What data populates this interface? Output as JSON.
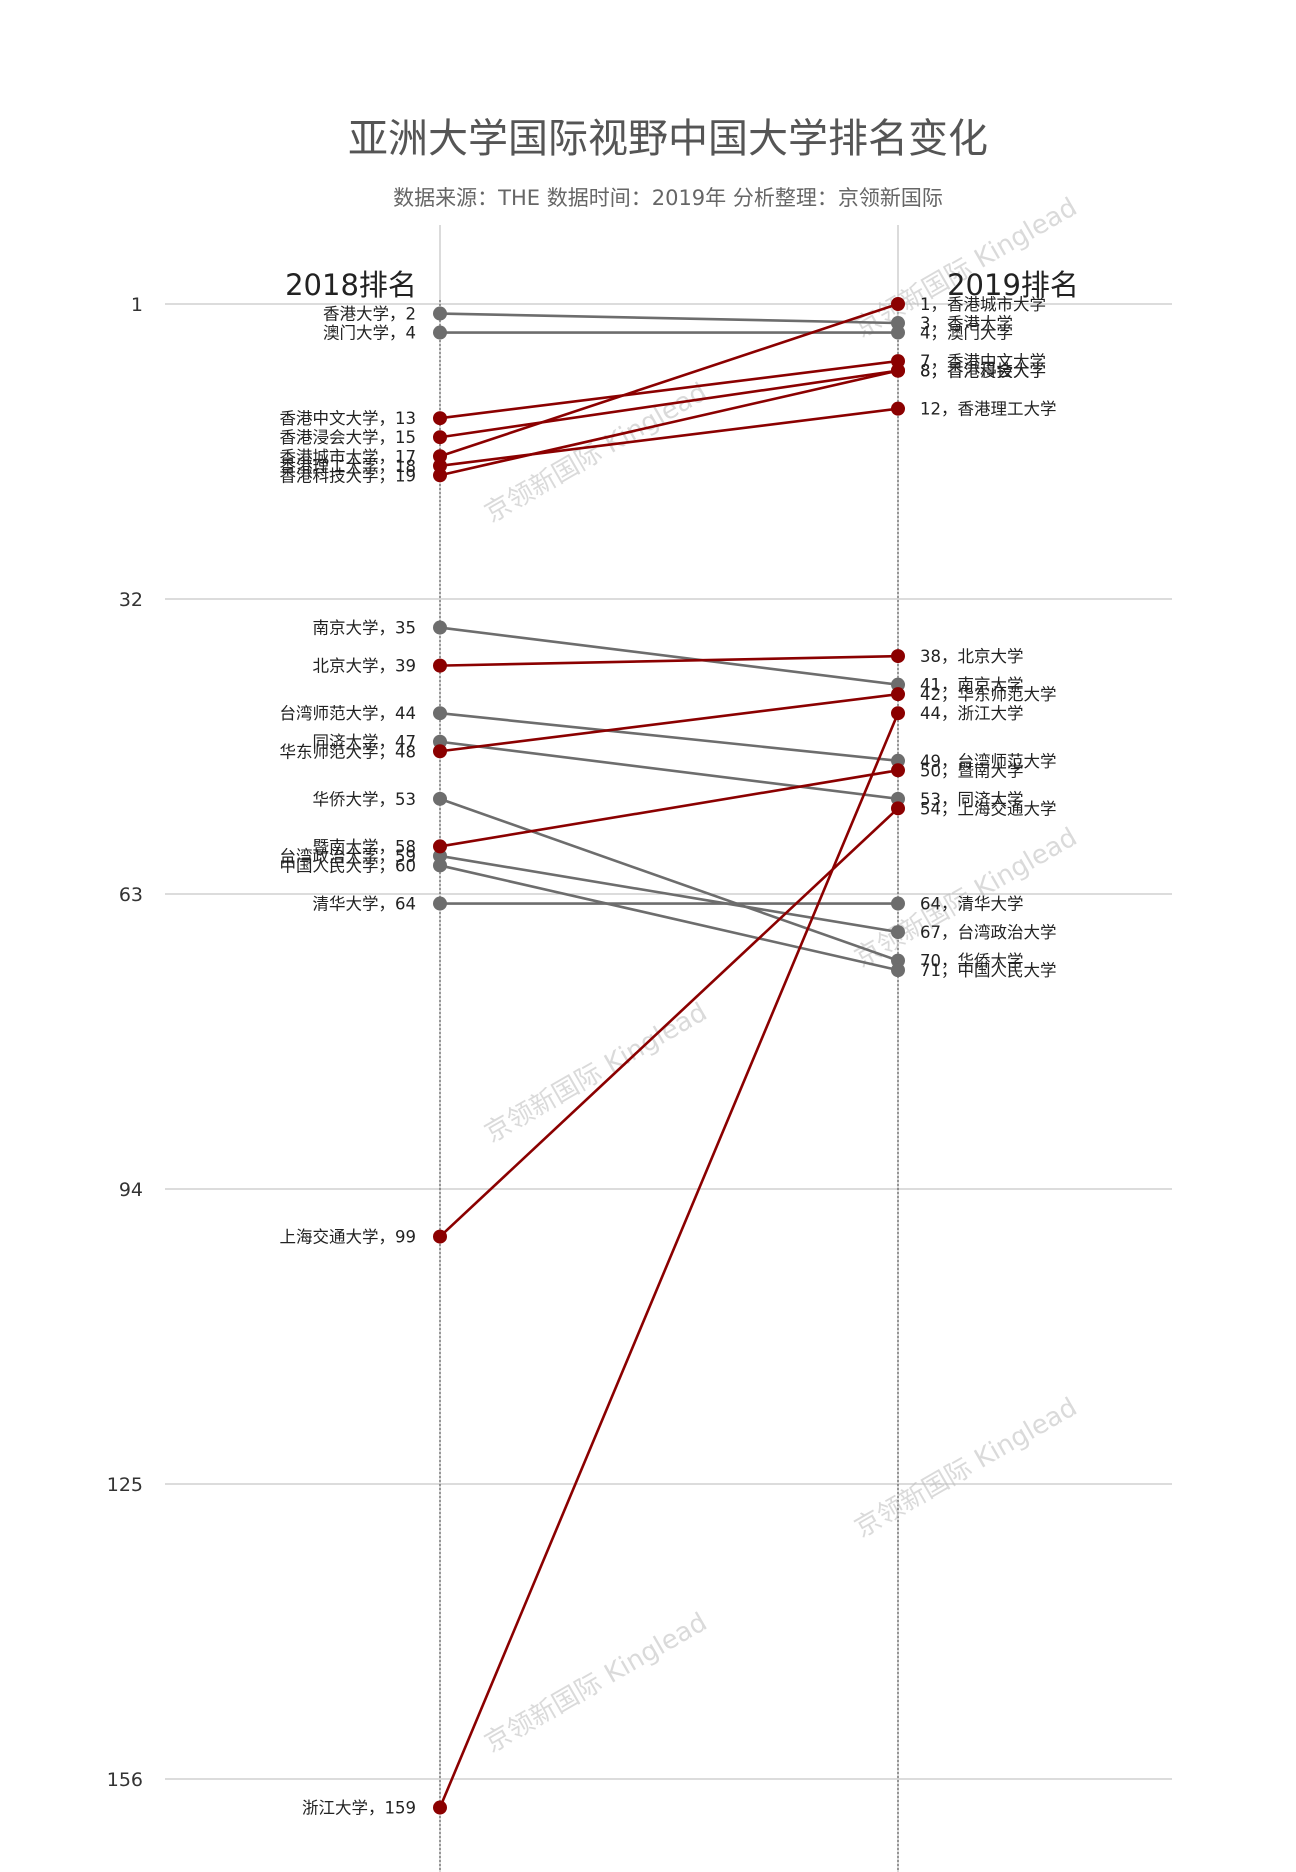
{
  "chart_data": {
    "type": "line",
    "subtype": "slope",
    "title": "亚洲大学国际视野中国大学排名变化",
    "subtitle": "数据来源：THE 数据时间：2019年 分析整理：京领新国际",
    "watermark": "京领新国际 Kinglead",
    "columns": [
      "2018排名",
      "2019排名"
    ],
    "y_axis": {
      "inverted": true,
      "ylim": [
        1,
        162
      ],
      "ticks": [
        1,
        32,
        63,
        94,
        125,
        156
      ]
    },
    "grid": true,
    "colors": {
      "up": "#8b0000",
      "down": "#6d6d6d",
      "grid": "#c8c8c8",
      "axis": "#444444"
    },
    "series": [
      {
        "name": "香港城市大学",
        "rank_2018": 17,
        "rank_2019": 1,
        "label_2018": "香港城市大学，17",
        "label_2019": "1，香港城市大学",
        "trend": "up"
      },
      {
        "name": "香港大学",
        "rank_2018": 2,
        "rank_2019": 3,
        "label_2018": "香港大学，2",
        "label_2019": "3，香港大学",
        "trend": "down"
      },
      {
        "name": "澳门大学",
        "rank_2018": 4,
        "rank_2019": 4,
        "label_2018": "澳门大学，4",
        "label_2019": "4，澳门大学",
        "trend": "down"
      },
      {
        "name": "香港中文大学",
        "rank_2018": 13,
        "rank_2019": 7,
        "label_2018": "香港中文大学，13",
        "label_2019": "7，香港中文大学",
        "trend": "up"
      },
      {
        "name": "香港浸会大学",
        "rank_2018": 15,
        "rank_2019": 8,
        "label_2018": "香港浸会大学，15",
        "label_2019": "8，香港浸会大学",
        "trend": "up"
      },
      {
        "name": "香港科技大学",
        "rank_2018": 19,
        "rank_2019": 8,
        "label_2018": "香港科技大学，19",
        "label_2019": "8，香港科技大学",
        "trend": "up"
      },
      {
        "name": "香港理工大学",
        "rank_2018": 18,
        "rank_2019": 12,
        "label_2018": "香港理工大学，18",
        "label_2019": "12，香港理工大学",
        "trend": "up"
      },
      {
        "name": "南京大学",
        "rank_2018": 35,
        "rank_2019": 41,
        "label_2018": "南京大学，35",
        "label_2019": "41，南京大学",
        "trend": "down"
      },
      {
        "name": "北京大学",
        "rank_2018": 39,
        "rank_2019": 38,
        "label_2018": "北京大学，39",
        "label_2019": "38，北京大学",
        "trend": "up"
      },
      {
        "name": "台湾师范大学",
        "rank_2018": 44,
        "rank_2019": 49,
        "label_2018": "台湾师范大学，44",
        "label_2019": "49，台湾师范大学",
        "trend": "down"
      },
      {
        "name": "同济大学",
        "rank_2018": 47,
        "rank_2019": 53,
        "label_2018": "同济大学，47",
        "label_2019": "53，同济大学",
        "trend": "down"
      },
      {
        "name": "华东师范大学",
        "rank_2018": 48,
        "rank_2019": 42,
        "label_2018": "华东师范大学，48",
        "label_2019": "42，华东师范大学",
        "trend": "up"
      },
      {
        "name": "华侨大学",
        "rank_2018": 53,
        "rank_2019": 70,
        "label_2018": "华侨大学，53",
        "label_2019": "70，华侨大学",
        "trend": "down"
      },
      {
        "name": "暨南大学",
        "rank_2018": 58,
        "rank_2019": 50,
        "label_2018": "暨南大学，58",
        "label_2019": "50，暨南大学",
        "trend": "up"
      },
      {
        "name": "台湾政治大学",
        "rank_2018": 59,
        "rank_2019": 67,
        "label_2018": "台湾政治大学，59",
        "label_2019": "67，台湾政治大学",
        "trend": "down"
      },
      {
        "name": "中国人民大学",
        "rank_2018": 60,
        "rank_2019": 71,
        "label_2018": "中国人民大学，60",
        "label_2019": "71，中国人民大学",
        "trend": "down"
      },
      {
        "name": "清华大学",
        "rank_2018": 64,
        "rank_2019": 64,
        "label_2018": "清华大学，64",
        "label_2019": "64，清华大学",
        "trend": "down"
      },
      {
        "name": "上海交通大学",
        "rank_2018": 99,
        "rank_2019": 54,
        "label_2018": "上海交通大学，99",
        "label_2019": "54，上海交通大学",
        "trend": "up"
      },
      {
        "name": "浙江大学",
        "rank_2018": 159,
        "rank_2019": 44,
        "label_2018": "浙江大学，159",
        "label_2019": "44，浙江大学",
        "trend": "up"
      }
    ]
  }
}
